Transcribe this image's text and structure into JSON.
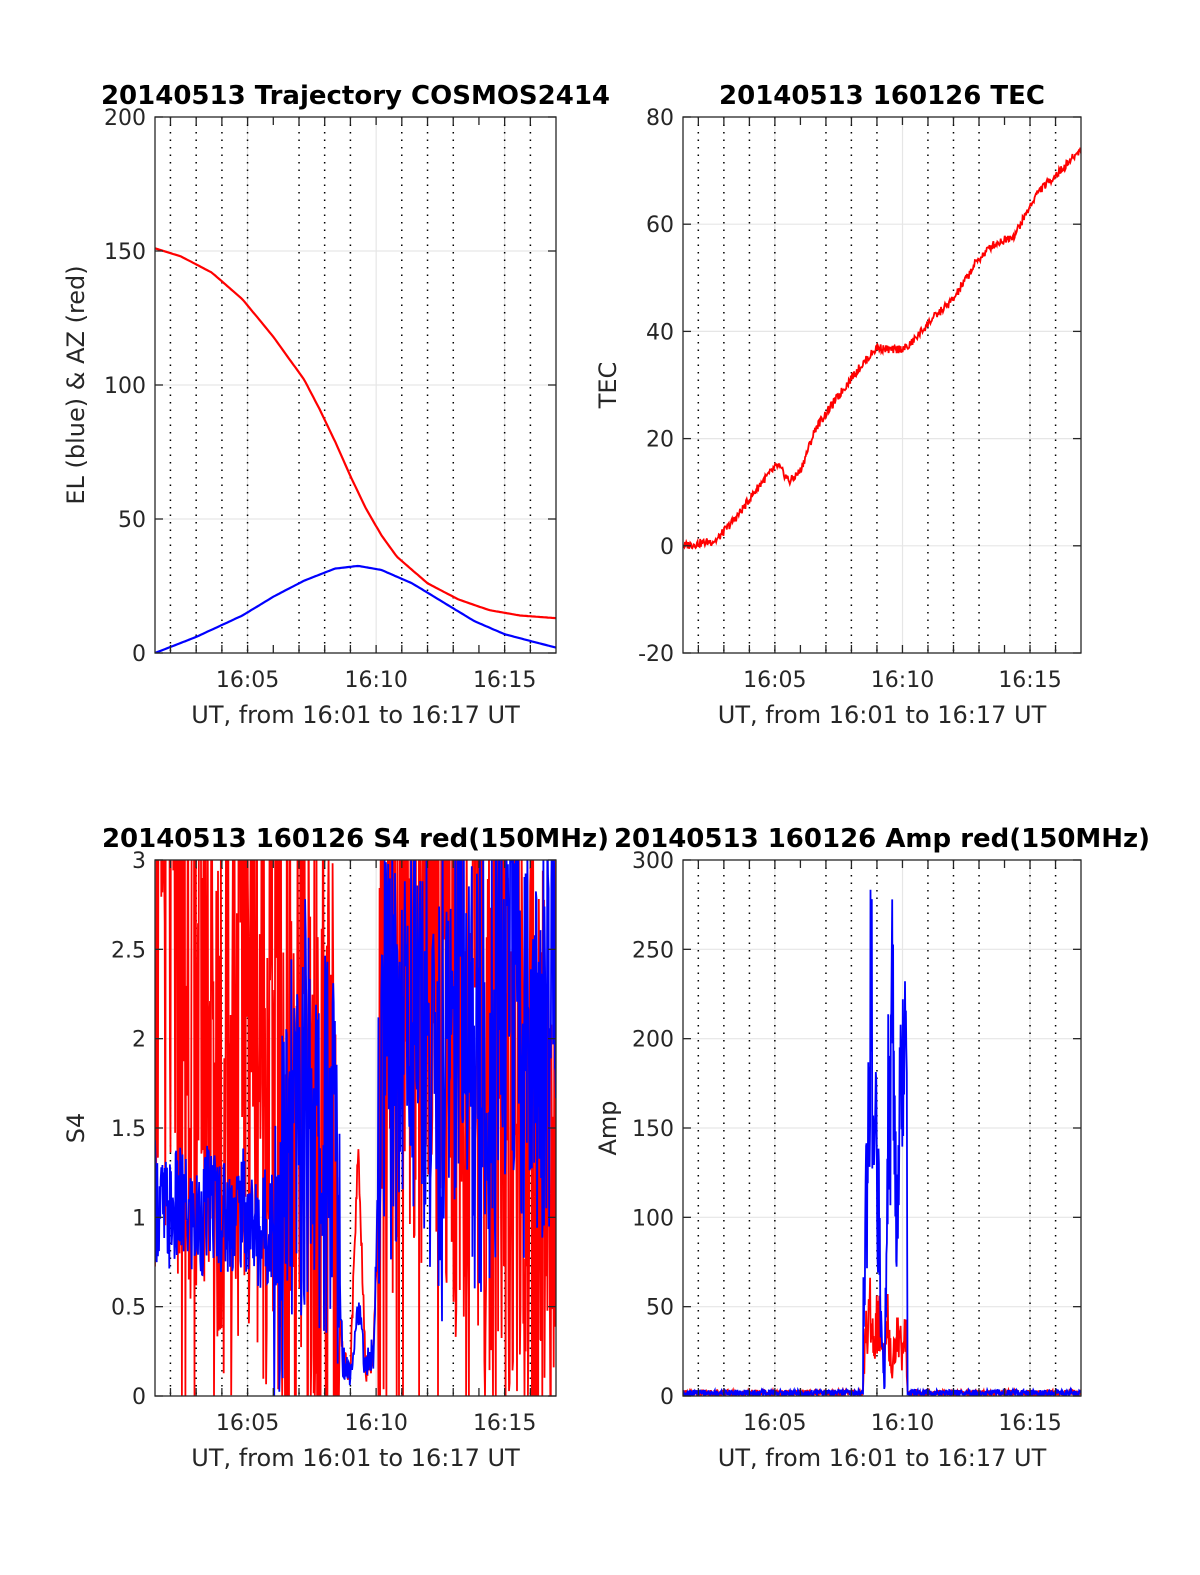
{
  "chart_data": [
    {
      "type": "line",
      "title": "20140513 Trajectory COSMOS2414",
      "xlabel": "UT, from 16:01 to 16:17 UT",
      "ylabel": "EL (blue) & AZ (red)",
      "xlim": [
        16.0233,
        16.2833
      ],
      "ylim": [
        0,
        200
      ],
      "x_ticks": [
        "16:05",
        "16:10",
        "16:15"
      ],
      "y_ticks": [
        "0",
        "50",
        "100",
        "150",
        "200"
      ],
      "grid": true,
      "series": [
        {
          "color": "#ff0000",
          "x": [
            16.0233,
            16.04,
            16.06,
            16.08,
            16.1,
            16.12,
            16.13,
            16.14,
            16.15,
            16.16,
            16.17,
            16.18,
            16.2,
            16.22,
            16.24,
            16.26,
            16.2833
          ],
          "y": [
            151,
            148,
            142,
            132,
            118,
            102,
            91,
            79,
            66,
            54,
            44,
            36,
            26,
            20,
            16,
            14,
            13
          ]
        },
        {
          "color": "#0000ff",
          "x": [
            16.0233,
            16.05,
            16.08,
            16.1,
            16.12,
            16.14,
            16.155,
            16.17,
            16.19,
            16.21,
            16.23,
            16.25,
            16.2833
          ],
          "y": [
            0,
            6,
            14,
            21,
            27,
            31.5,
            32.5,
            31,
            26,
            19,
            12,
            7,
            2
          ]
        }
      ]
    },
    {
      "type": "line",
      "title": "20140513 160126 TEC",
      "xlabel": "UT, from 16:01 to 16:17 UT",
      "ylabel": "TEC",
      "xlim": [
        16.0233,
        16.2833
      ],
      "ylim": [
        -20,
        80
      ],
      "x_ticks": [
        "16:05",
        "16:10",
        "16:15"
      ],
      "y_ticks": [
        "-20",
        "0",
        "20",
        "40",
        "60",
        "80"
      ],
      "grid": true,
      "series": [
        {
          "color": "#ff0000",
          "x": [
            16.0233,
            16.035,
            16.045,
            16.06,
            16.075,
            16.085,
            16.093,
            16.1,
            16.11,
            16.12,
            16.135,
            16.15,
            16.16,
            16.17,
            16.185,
            16.2,
            16.215,
            16.225,
            16.24,
            16.255,
            16.27,
            16.2833
          ],
          "y": [
            0,
            0.5,
            1,
            6,
            12,
            15,
            12,
            14,
            22,
            26,
            32,
            37,
            36.5,
            37,
            42,
            46,
            53,
            56,
            58,
            66,
            70,
            74
          ]
        }
      ]
    },
    {
      "type": "line",
      "title": "20140513 160126 S4 red(150MHz)",
      "xlabel": "UT, from 16:01 to 16:17 UT",
      "ylabel": "S4",
      "xlim": [
        16.0233,
        16.2833
      ],
      "ylim": [
        0,
        3
      ],
      "x_ticks": [
        "16:05",
        "16:10",
        "16:15"
      ],
      "y_ticks": [
        "0",
        "0.5",
        "1",
        "1.5",
        "2",
        "2.5",
        "3"
      ],
      "grid": true,
      "series": [
        {
          "color": "#ff0000",
          "x": [
            16.0233,
            16.03,
            16.04,
            16.05,
            16.06,
            16.07,
            16.08,
            16.09,
            16.1,
            16.11,
            16.12,
            16.13,
            16.14,
            16.145,
            16.15,
            16.155,
            16.16,
            16.165,
            16.17,
            16.18,
            16.19,
            16.2,
            16.21,
            16.22,
            16.23,
            16.24,
            16.25,
            16.26,
            16.27,
            16.2833
          ],
          "y": [
            2.5,
            2.8,
            2.4,
            2.6,
            2.2,
            1.6,
            2.5,
            2.2,
            1.9,
            1.4,
            1.6,
            1.3,
            1.0,
            0.2,
            0.15,
            1.4,
            0.15,
            0.2,
            1.8,
            2.4,
            2.8,
            2.5,
            2.7,
            1.8,
            2.6,
            1.2,
            2.0,
            1.5,
            1.0,
            1.5
          ]
        },
        {
          "color": "#0000ff",
          "x": [
            16.0233,
            16.03,
            16.04,
            16.05,
            16.06,
            16.07,
            16.08,
            16.09,
            16.1,
            16.11,
            16.12,
            16.125,
            16.13,
            16.135,
            16.14,
            16.145,
            16.15,
            16.155,
            16.16,
            16.165,
            16.17,
            16.18,
            16.19,
            16.2,
            16.21,
            16.22,
            16.23,
            16.24,
            16.25,
            16.26,
            16.27,
            16.2833
          ],
          "y": [
            1.1,
            1.0,
            1.05,
            0.95,
            1.1,
            1.0,
            1.05,
            0.9,
            1.0,
            1.2,
            1.6,
            1.8,
            1.2,
            1.5,
            1.4,
            0.2,
            0.15,
            0.5,
            0.15,
            0.25,
            1.8,
            2.0,
            2.2,
            1.9,
            1.6,
            2.5,
            1.8,
            1.7,
            2.3,
            2.0,
            1.8,
            2.2
          ]
        }
      ]
    },
    {
      "type": "line",
      "title": "20140513 160126 Amp red(150MHz)",
      "xlabel": "UT, from 16:01 to 16:17 UT",
      "ylabel": "Amp",
      "xlim": [
        16.0233,
        16.2833
      ],
      "ylim": [
        0,
        300
      ],
      "x_ticks": [
        "16:05",
        "16:10",
        "16:15"
      ],
      "y_ticks": [
        "0",
        "50",
        "100",
        "150",
        "200",
        "250",
        "300"
      ],
      "grid": true,
      "series": [
        {
          "color": "#ff0000",
          "x": [
            16.0233,
            16.14,
            16.142,
            16.145,
            16.148,
            16.151,
            16.154,
            16.157,
            16.16,
            16.163,
            16.166,
            16.169,
            16.17,
            16.2833
          ],
          "y": [
            0,
            0,
            25,
            55,
            30,
            45,
            20,
            40,
            15,
            38,
            25,
            35,
            0,
            0
          ]
        },
        {
          "color": "#0000ff",
          "x": [
            16.0233,
            16.139,
            16.142,
            16.146,
            16.15,
            16.153,
            16.155,
            16.157,
            16.16,
            16.163,
            16.166,
            16.169,
            16.171,
            16.2833
          ],
          "y": [
            2,
            2,
            80,
            205,
            140,
            40,
            2,
            150,
            205,
            120,
            200,
            170,
            2,
            1
          ]
        }
      ]
    }
  ]
}
